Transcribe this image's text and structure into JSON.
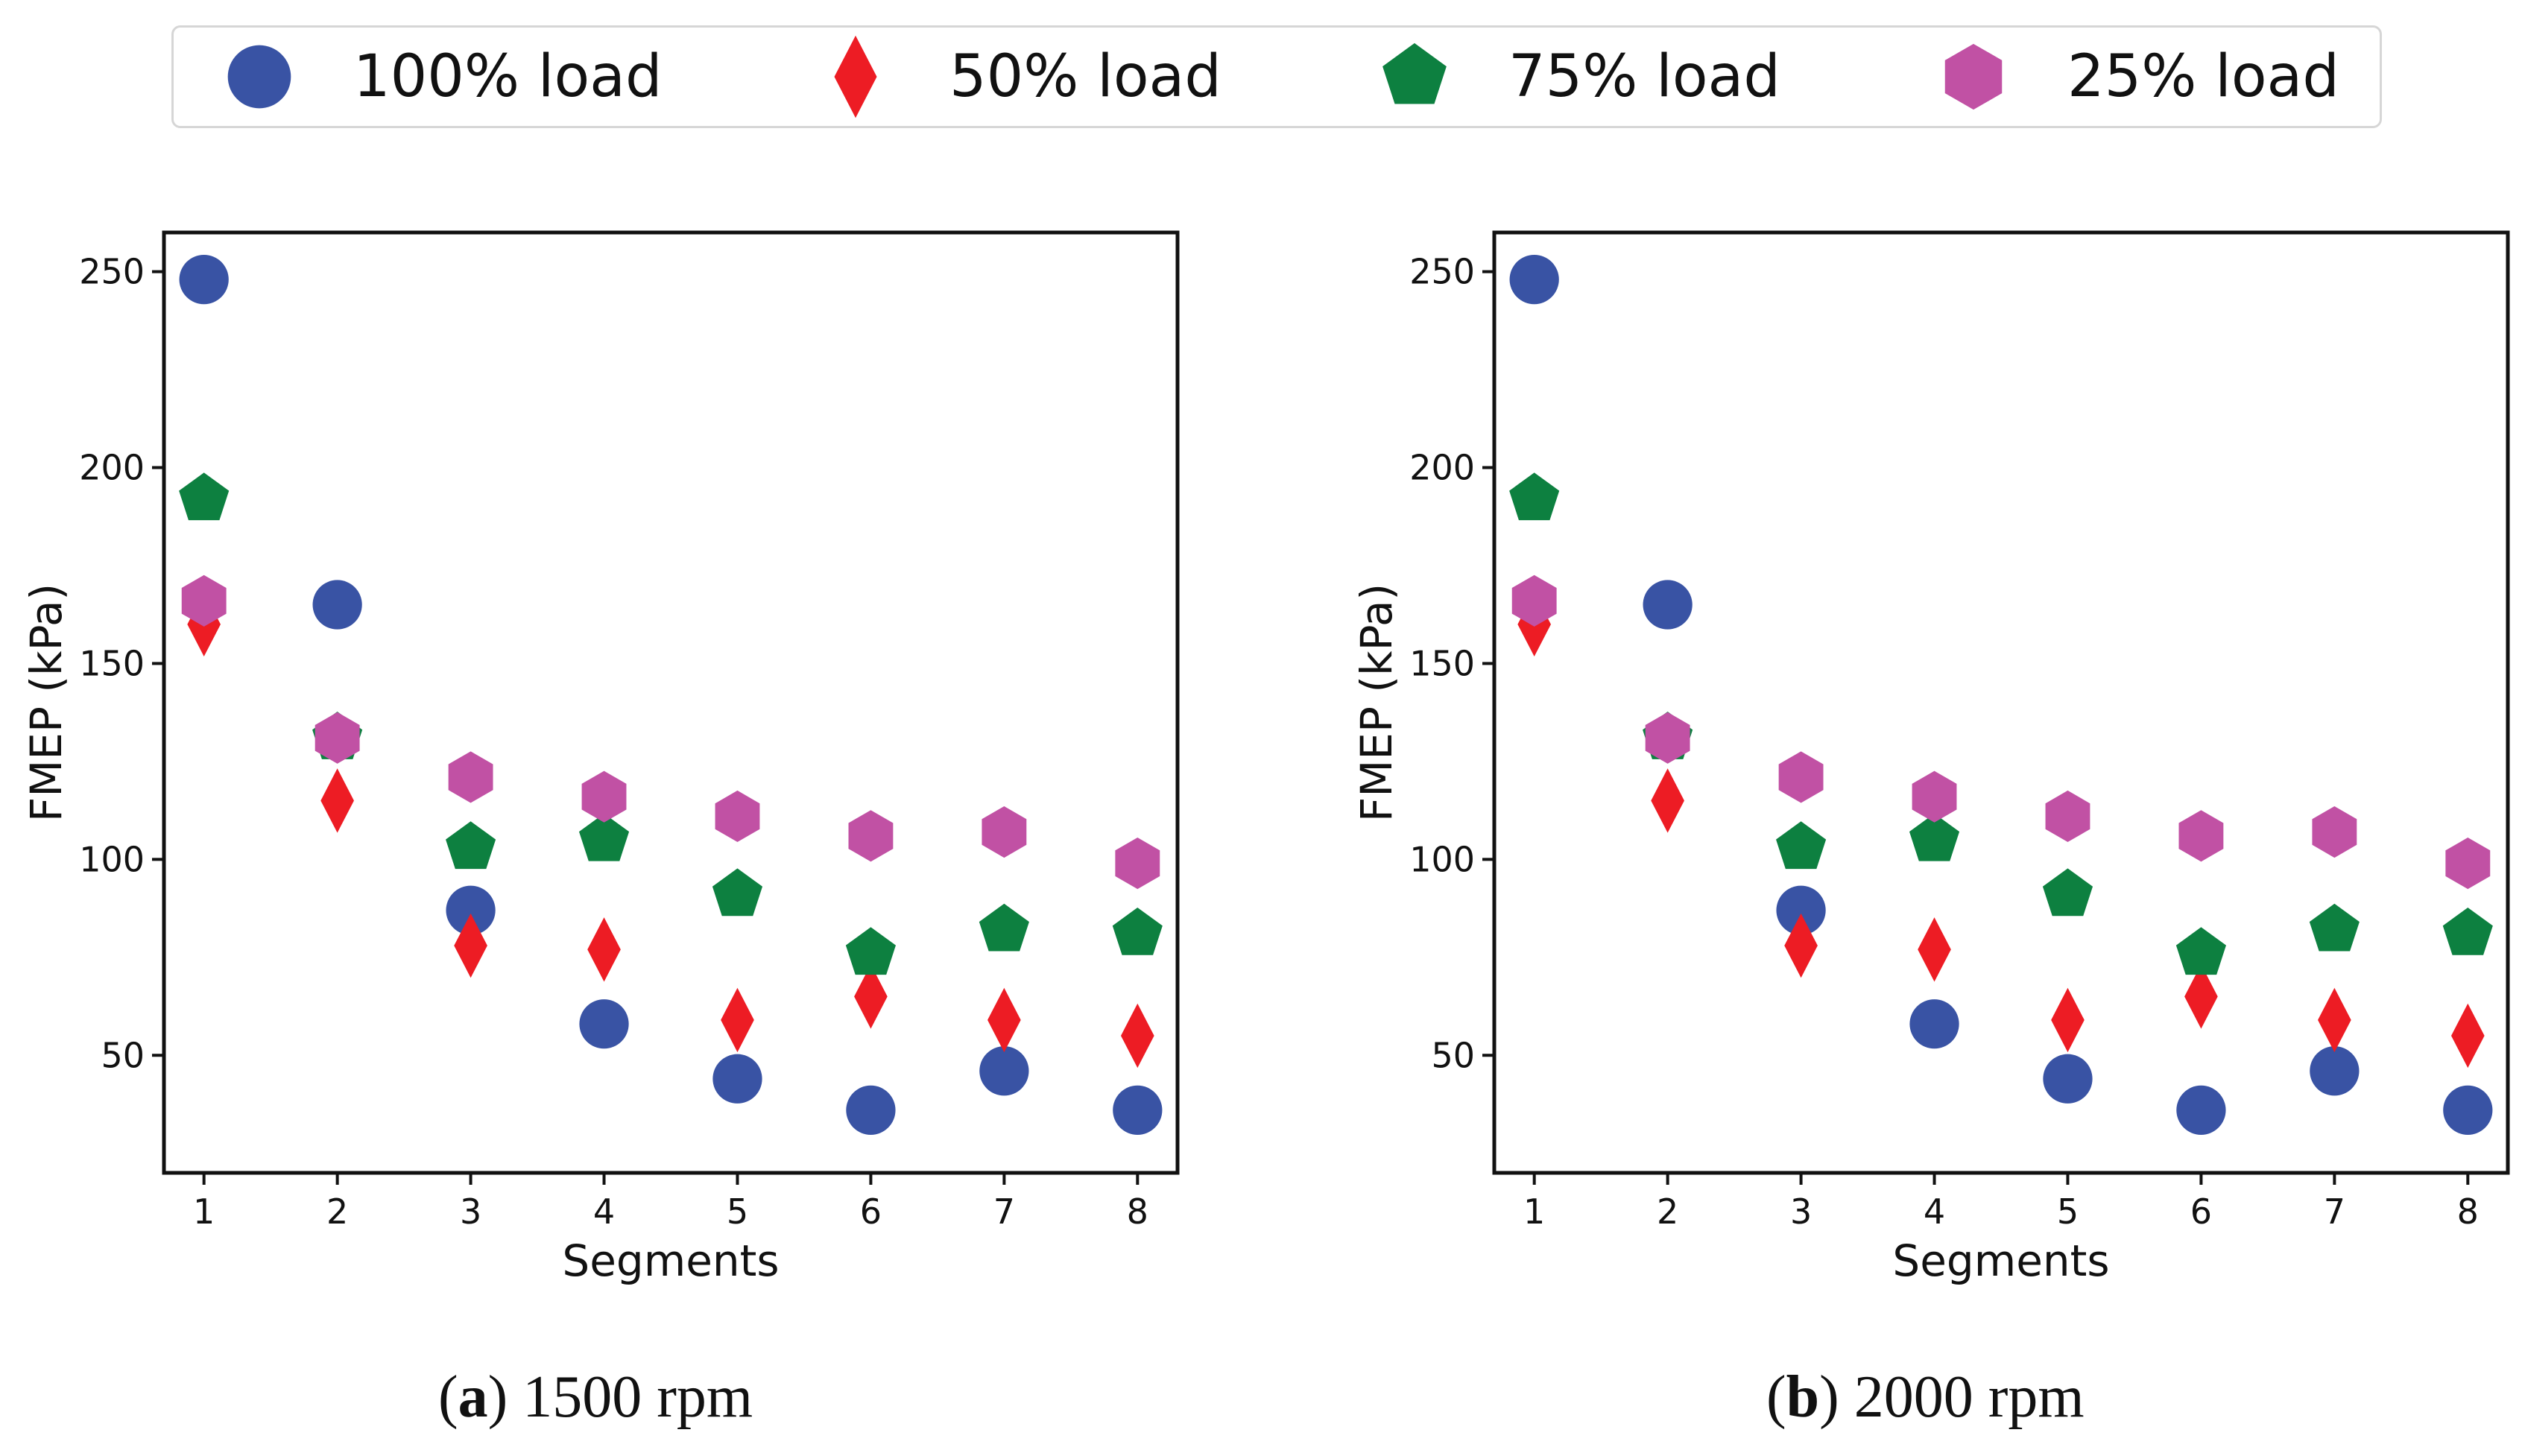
{
  "legend": [
    {
      "label": "100% load",
      "marker": "circle",
      "color": "#3953a4"
    },
    {
      "label": "50% load",
      "marker": "diamond",
      "color": "#ed1c24"
    },
    {
      "label": "75% load",
      "marker": "pentagon",
      "color": "#0d8040"
    },
    {
      "label": "25% load",
      "marker": "hexagon",
      "color": "#c151a4"
    }
  ],
  "captions": {
    "a": {
      "letter": "a",
      "text": " 1500 rpm"
    },
    "b": {
      "letter": "b",
      "text": " 2000 rpm"
    }
  },
  "chart_data": [
    {
      "type": "scatter",
      "title": "(a) 1500 rpm",
      "xlabel": "Segments",
      "ylabel": "FMEP (kPa)",
      "x": [
        1,
        2,
        3,
        4,
        5,
        6,
        7,
        8
      ],
      "xlim": [
        0.7,
        8.3
      ],
      "ylim": [
        20,
        260
      ],
      "yticks": [
        50,
        100,
        150,
        200,
        250
      ],
      "series": [
        {
          "name": "100% load",
          "marker": "circle",
          "color": "#3953a4",
          "values": [
            248,
            165,
            87,
            58,
            44,
            36,
            46,
            36
          ]
        },
        {
          "name": "50% load",
          "marker": "diamond",
          "color": "#ed1c24",
          "values": [
            160,
            115,
            78,
            77,
            59,
            65,
            59,
            55
          ]
        },
        {
          "name": "75% load",
          "marker": "pentagon",
          "color": "#0d8040",
          "values": [
            192,
            131,
            103,
            105,
            91,
            76,
            82,
            81
          ]
        },
        {
          "name": "25% load",
          "marker": "hexagon",
          "color": "#c151a4",
          "values": [
            166,
            131,
            121,
            116,
            111,
            106,
            107,
            99
          ]
        }
      ]
    },
    {
      "type": "scatter",
      "title": "(b) 2000 rpm",
      "xlabel": "Segments",
      "ylabel": "FMEP (kPa)",
      "x": [
        1,
        2,
        3,
        4,
        5,
        6,
        7,
        8
      ],
      "xlim": [
        0.7,
        8.3
      ],
      "ylim": [
        20,
        260
      ],
      "yticks": [
        50,
        100,
        150,
        200,
        250
      ],
      "series": [
        {
          "name": "100% load",
          "marker": "circle",
          "color": "#3953a4",
          "values": [
            248,
            165,
            87,
            58,
            44,
            36,
            46,
            36
          ]
        },
        {
          "name": "50% load",
          "marker": "diamond",
          "color": "#ed1c24",
          "values": [
            160,
            115,
            78,
            77,
            59,
            65,
            59,
            55
          ]
        },
        {
          "name": "75% load",
          "marker": "pentagon",
          "color": "#0d8040",
          "values": [
            192,
            131,
            103,
            105,
            91,
            76,
            82,
            81
          ]
        },
        {
          "name": "25% load",
          "marker": "hexagon",
          "color": "#c151a4",
          "values": [
            166,
            131,
            121,
            116,
            111,
            106,
            107,
            99
          ]
        }
      ]
    }
  ]
}
